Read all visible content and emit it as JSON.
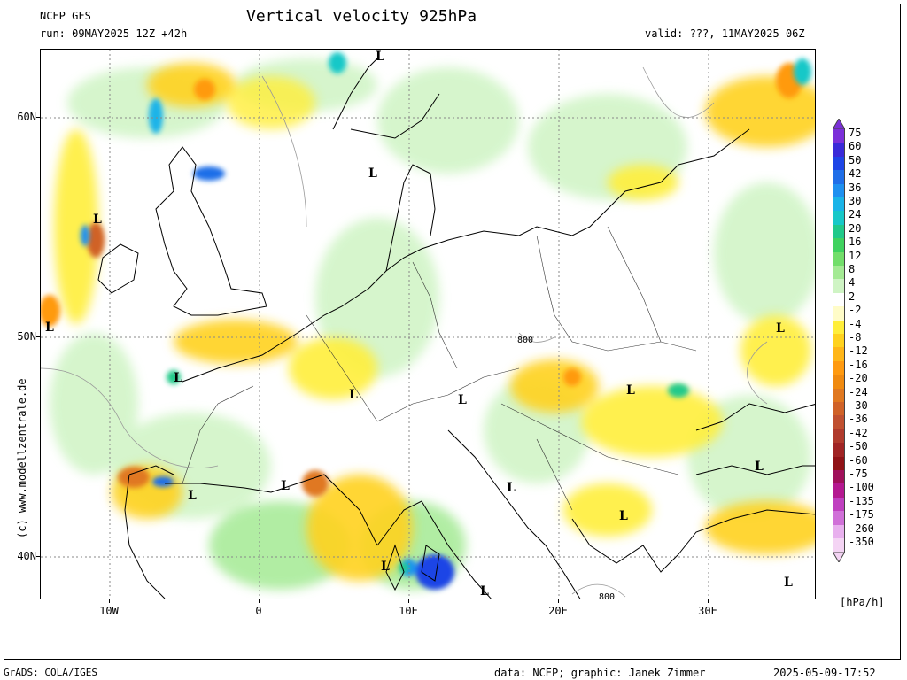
{
  "header": {
    "model": "NCEP GFS",
    "run": "run: 09MAY2025 12Z +42h",
    "title": "Vertical velocity 925hPa",
    "valid": "valid: ???, 11MAY2025 06Z"
  },
  "axes": {
    "lat_labels": [
      "60N",
      "50N",
      "40N"
    ],
    "lon_labels": [
      "10W",
      "0",
      "10E",
      "20E",
      "30E"
    ]
  },
  "contour_labels": [
    "800",
    "800"
  ],
  "low_marker": "L",
  "credit_vertical": "(c) www.modellzentrale.de",
  "footer": {
    "left": "GrADS: COLA/IGES",
    "center": "data: NCEP; graphic: Janek Zimmer",
    "right": "2025-05-09-17:52"
  },
  "legend": {
    "unit": "[hPa/h]",
    "labels": [
      "75",
      "60",
      "50",
      "42",
      "36",
      "30",
      "24",
      "20",
      "16",
      "12",
      "8",
      "4",
      "2",
      "-2",
      "-4",
      "-8",
      "-12",
      "-16",
      "-20",
      "-24",
      "-30",
      "-36",
      "-42",
      "-50",
      "-60",
      "-75",
      "-100",
      "-135",
      "-175",
      "-260",
      "-350"
    ],
    "colors": [
      "#7b2fd9",
      "#3a2ad8",
      "#1e45e6",
      "#1f6ee8",
      "#1e90f0",
      "#1ab4e8",
      "#17c8c8",
      "#20c98a",
      "#3fd25f",
      "#72de6a",
      "#a4ea94",
      "#cff4c4",
      "#ffffff",
      "#fffcc8",
      "#ffee3a",
      "#ffd21e",
      "#ffb618",
      "#ff9a10",
      "#f08a10",
      "#e07820",
      "#d06228",
      "#c05030",
      "#b03a2c",
      "#a02424",
      "#901216",
      "#a0105a",
      "#b41890",
      "#c040c0",
      "#d070d8",
      "#e8b0ee",
      "#f4d4f4"
    ]
  }
}
